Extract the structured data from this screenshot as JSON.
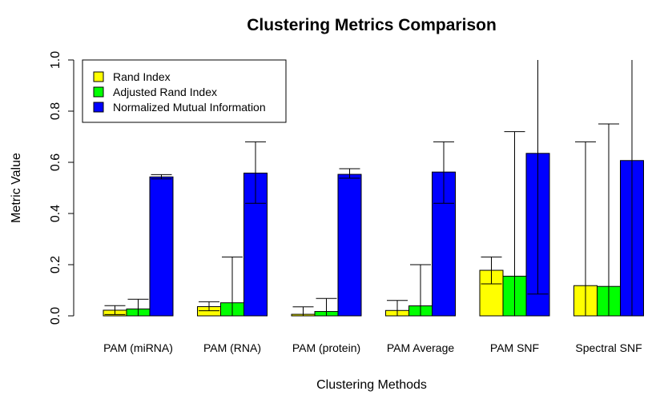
{
  "chart_data": {
    "type": "bar",
    "title": "Clustering Metrics Comparison",
    "xlabel": "Clustering Methods",
    "ylabel": "Metric Value",
    "ylim": [
      0,
      1
    ],
    "yticks": [
      "0.0",
      "0.2",
      "0.4",
      "0.6",
      "0.8",
      "1.0"
    ],
    "grid": false,
    "legend_position": "top-left",
    "categories": [
      "PAM (miRNA)",
      "PAM (RNA)",
      "PAM (protein)",
      "PAM Average",
      "PAM SNF",
      "Spectral SNF"
    ],
    "series": [
      {
        "name": "Rand Index",
        "color": "#ffff00",
        "values": [
          0.022,
          0.036,
          0.006,
          0.021,
          0.178,
          0.118
        ],
        "error_low": [
          0.005,
          0.02,
          0.0,
          0.0,
          0.125,
          0.0
        ],
        "error_high": [
          0.04,
          0.055,
          0.035,
          0.06,
          0.23,
          0.68
        ]
      },
      {
        "name": "Adjusted Rand Index",
        "color": "#00ff00",
        "values": [
          0.027,
          0.051,
          0.017,
          0.039,
          0.155,
          0.115
        ],
        "error_low": [
          0.0,
          0.0,
          0.0,
          0.0,
          0.0,
          0.0
        ],
        "error_high": [
          0.065,
          0.23,
          0.068,
          0.2,
          0.72,
          0.75
        ]
      },
      {
        "name": "Normalized Mutual Information",
        "color": "#0000ff",
        "values": [
          0.543,
          0.558,
          0.553,
          0.562,
          0.635,
          0.607
        ],
        "error_low": [
          0.535,
          0.44,
          0.538,
          0.44,
          0.085,
          0.0
        ],
        "error_high": [
          0.552,
          0.68,
          0.575,
          0.68,
          1.0,
          1.0
        ]
      }
    ]
  }
}
